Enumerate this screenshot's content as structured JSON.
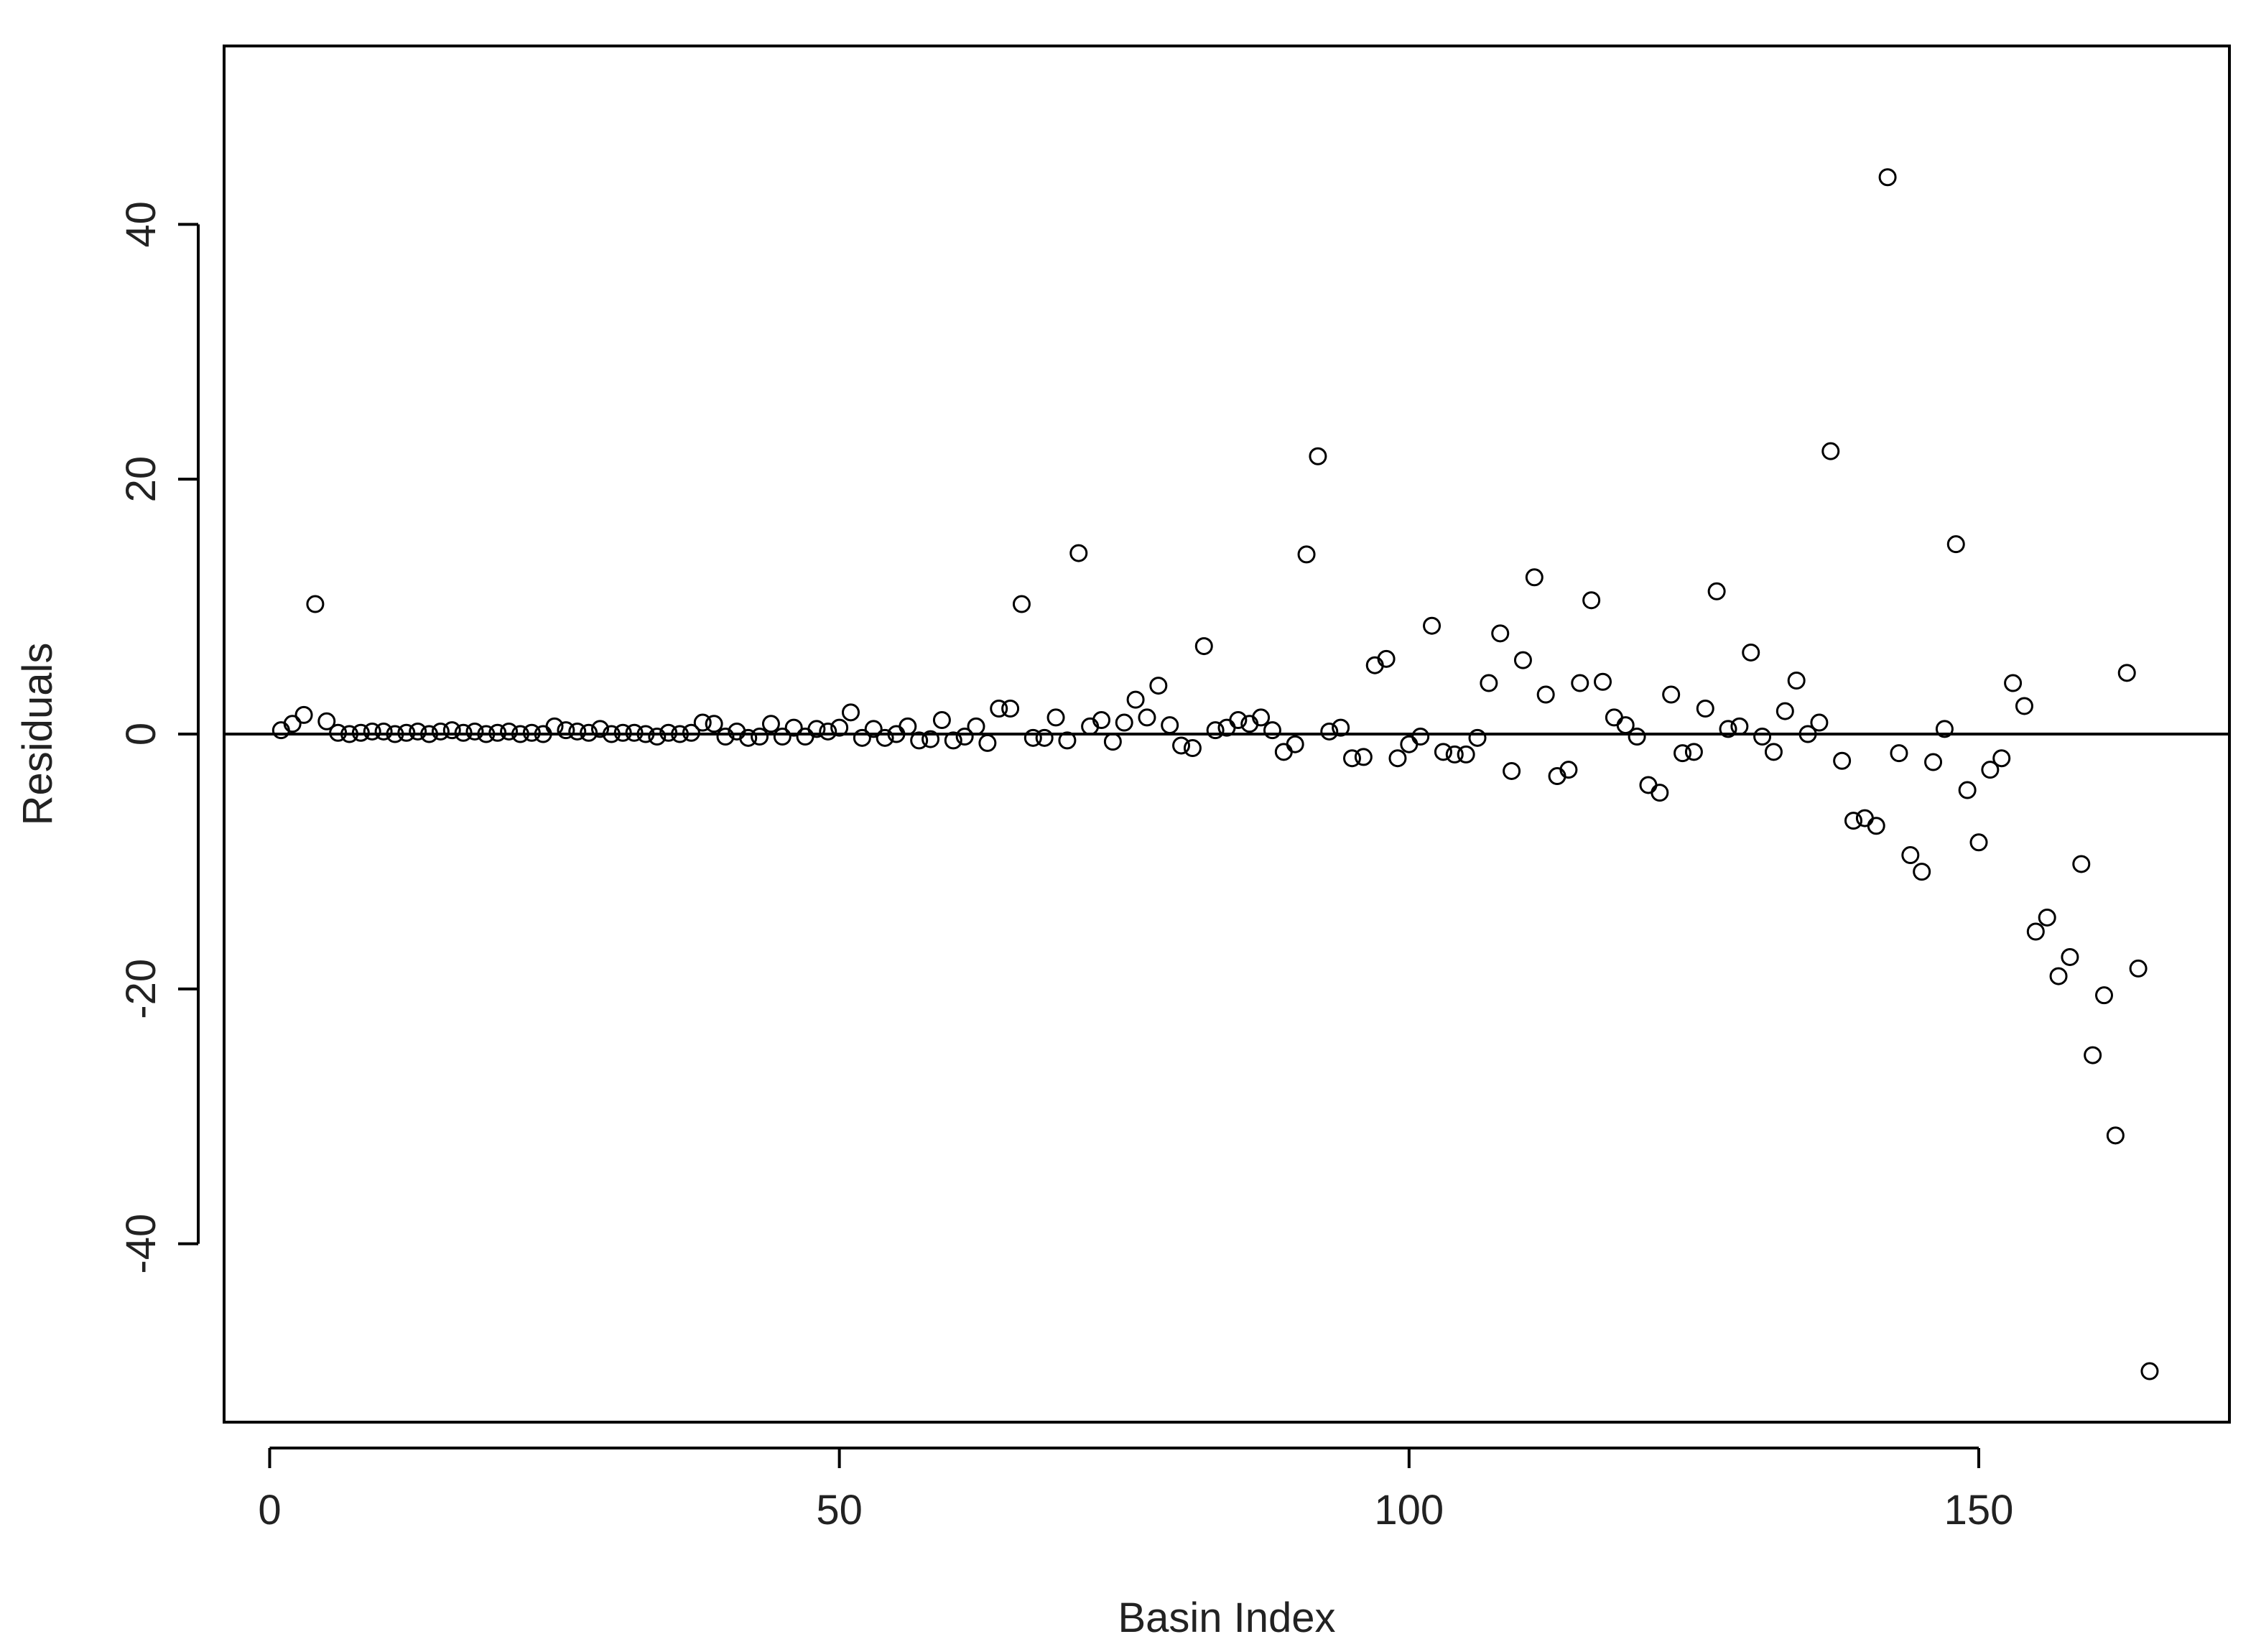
{
  "chart_data": {
    "type": "scatter",
    "title": "",
    "xlabel": "Basin Index",
    "ylabel": "Residuals",
    "xlim": [
      -4,
      172
    ],
    "ylim": [
      -54,
      54
    ],
    "xticks": [
      0,
      50,
      100,
      150
    ],
    "xtick_labels": [
      "0",
      "50",
      "100",
      "150"
    ],
    "yticks": [
      -40,
      -20,
      0,
      20,
      40
    ],
    "ytick_labels": [
      "-40",
      "-20",
      "0",
      "20",
      "40"
    ],
    "grid": false,
    "legend": "none",
    "reference_line_y": 0,
    "marker": "open-circle",
    "colors": {
      "marker": "#000000",
      "axis": "#000000",
      "text": "#222222"
    },
    "x": [
      1,
      2,
      3,
      4,
      5,
      6,
      7,
      8,
      9,
      10,
      11,
      12,
      13,
      14,
      15,
      16,
      17,
      18,
      19,
      20,
      21,
      22,
      23,
      24,
      25,
      26,
      27,
      28,
      29,
      30,
      31,
      32,
      33,
      34,
      35,
      36,
      37,
      38,
      39,
      40,
      41,
      42,
      43,
      44,
      45,
      46,
      47,
      48,
      49,
      50,
      51,
      52,
      53,
      54,
      55,
      56,
      57,
      58,
      59,
      60,
      61,
      62,
      63,
      64,
      65,
      66,
      67,
      68,
      69,
      70,
      71,
      72,
      73,
      74,
      75,
      76,
      77,
      78,
      79,
      80,
      81,
      82,
      83,
      84,
      85,
      86,
      87,
      88,
      89,
      90,
      91,
      92,
      93,
      94,
      95,
      96,
      97,
      98,
      99,
      100,
      101,
      102,
      103,
      104,
      105,
      106,
      107,
      108,
      109,
      110,
      111,
      112,
      113,
      114,
      115,
      116,
      117,
      118,
      119,
      120,
      121,
      122,
      123,
      124,
      125,
      126,
      127,
      128,
      129,
      130,
      131,
      132,
      133,
      134,
      135,
      136,
      137,
      138,
      139,
      140,
      141,
      142,
      143,
      144,
      145,
      146,
      147,
      148,
      149,
      150,
      151,
      152,
      153,
      154,
      155,
      156,
      157,
      158,
      159,
      160,
      161,
      162,
      163,
      164,
      165
    ],
    "y": [
      0.3,
      0.8,
      1.5,
      10.2,
      1.0,
      0.1,
      0.0,
      0.1,
      0.2,
      0.2,
      0.0,
      0.1,
      0.2,
      0.0,
      0.2,
      0.3,
      0.1,
      0.2,
      0.0,
      0.1,
      0.2,
      0.0,
      0.1,
      0.0,
      0.6,
      0.3,
      0.2,
      0.1,
      0.4,
      0.0,
      0.1,
      0.1,
      0.0,
      -0.2,
      0.1,
      0.0,
      0.1,
      0.9,
      0.8,
      -0.2,
      0.2,
      -0.3,
      -0.2,
      0.8,
      -0.2,
      0.5,
      -0.2,
      0.4,
      0.2,
      0.5,
      1.7,
      -0.3,
      0.4,
      -0.3,
      0.0,
      0.6,
      -0.5,
      -0.4,
      1.1,
      -0.5,
      -0.2,
      0.6,
      -0.7,
      2.0,
      2.0,
      10.2,
      -0.3,
      -0.3,
      1.3,
      -0.5,
      14.2,
      0.6,
      1.1,
      -0.6,
      0.9,
      2.7,
      1.3,
      3.8,
      0.7,
      -0.9,
      -1.1,
      6.9,
      0.3,
      0.5,
      1.1,
      0.8,
      1.3,
      0.3,
      -1.4,
      -0.8,
      14.1,
      21.8,
      0.2,
      0.5,
      -1.9,
      -1.8,
      5.4,
      5.9,
      -1.9,
      -0.8,
      -0.2,
      8.5,
      -1.4,
      -1.6,
      -1.6,
      -0.3,
      4.0,
      7.9,
      -2.9,
      5.8,
      12.3,
      3.1,
      -3.3,
      -2.8,
      4.0,
      10.5,
      4.1,
      1.3,
      0.7,
      -0.2,
      -4.0,
      -4.6,
      3.1,
      -1.5,
      -1.4,
      2.0,
      11.2,
      0.4,
      0.6,
      6.4,
      -0.2,
      -1.4,
      1.8,
      4.2,
      0.0,
      0.9,
      22.2,
      -2.1,
      -6.8,
      -6.6,
      -7.2,
      43.7,
      -1.5,
      -9.5,
      -10.8,
      -2.2,
      0.4,
      14.9,
      -4.4,
      -8.5,
      -2.8,
      -1.9,
      4.0,
      2.2,
      -15.5,
      -14.4,
      -19.0,
      -17.5,
      -10.2,
      -25.2,
      -20.5,
      -31.5,
      4.8,
      -18.4,
      -50.0
    ]
  }
}
